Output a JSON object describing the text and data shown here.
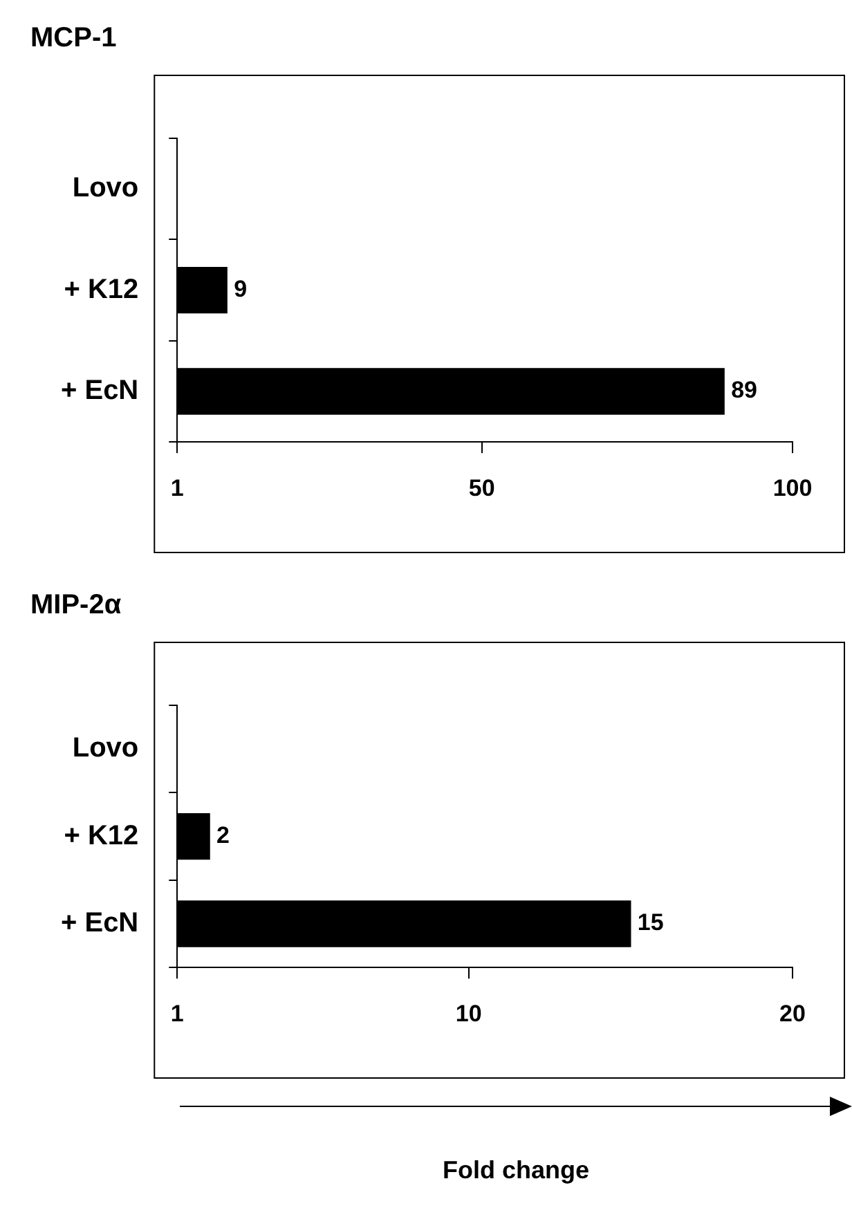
{
  "chart_data": [
    {
      "type": "bar",
      "orientation": "horizontal",
      "title": "MCP-1",
      "categories": [
        "Lovo",
        "+ K12",
        "+ EcN"
      ],
      "values": [
        null,
        9,
        89
      ],
      "color": "#000000",
      "xlim": [
        1,
        100
      ],
      "xticks": [
        1,
        50,
        100
      ],
      "data_labels": true,
      "grid": false,
      "legend": false
    },
    {
      "type": "bar",
      "orientation": "horizontal",
      "title": "MIP-2α",
      "xlabel": "Fold change",
      "categories": [
        "Lovo",
        "+ K12",
        "+ EcN"
      ],
      "values": [
        null,
        2,
        15
      ],
      "color": "#000000",
      "xlim": [
        1,
        20
      ],
      "xticks": [
        1,
        10,
        20
      ],
      "data_labels": true,
      "grid": false,
      "legend": false
    }
  ]
}
